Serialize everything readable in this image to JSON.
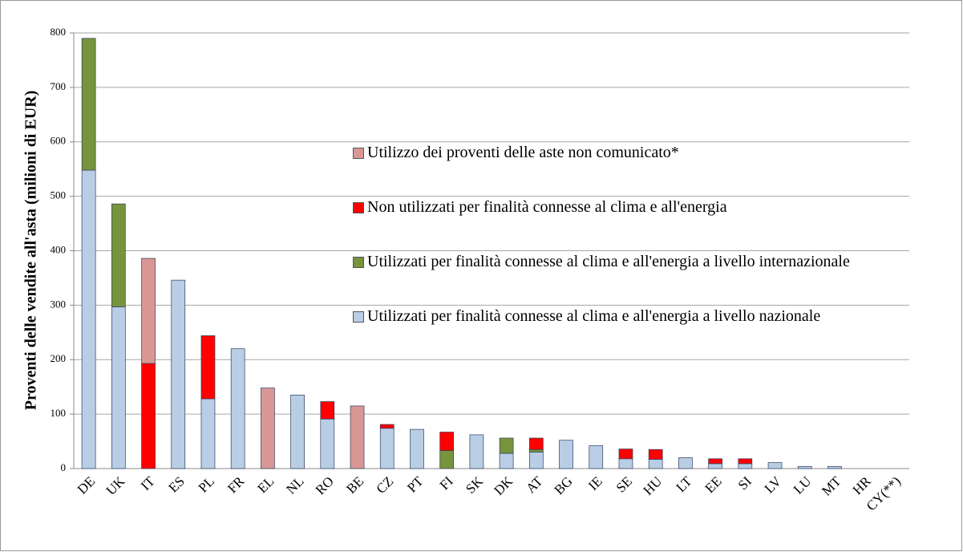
{
  "chart_data": {
    "type": "stacked_bar",
    "y_label": "Proventi delle vendite all'asta (milioni di EUR)",
    "categories": [
      "DE",
      "UK",
      "IT",
      "ES",
      "PL",
      "FR",
      "EL",
      "NL",
      "RO",
      "BE",
      "CZ",
      "PT",
      "FI",
      "SK",
      "DK",
      "AT",
      "BG",
      "IE",
      "SE",
      "HU",
      "LT",
      "EE",
      "SI",
      "LV",
      "LU",
      "MT",
      "HR",
      "CY(**)"
    ],
    "series": [
      {
        "name": "Utilizzati per finalità connesse al clima e all'energia a livello nazionale",
        "color": "#b9cde5",
        "values": [
          548,
          297,
          0,
          346,
          128,
          220,
          0,
          135,
          91,
          0,
          74,
          72,
          0,
          62,
          28,
          30,
          52,
          42,
          18,
          17,
          20,
          9,
          9,
          11,
          4,
          4,
          0,
          0
        ]
      },
      {
        "name": "Utilizzati per finalità connesse al clima e all'energia a livello internazionale",
        "color": "#77933c",
        "values": [
          242,
          189,
          0,
          0,
          0,
          0,
          0,
          0,
          0,
          0,
          0,
          0,
          33,
          0,
          28,
          5,
          0,
          0,
          0,
          0,
          0,
          0,
          0,
          0,
          0,
          0,
          0,
          0
        ]
      },
      {
        "name": "Non utilizzati per finalità connesse al clima e all'energia",
        "color": "#ff0000",
        "values": [
          0,
          0,
          193,
          0,
          116,
          0,
          0,
          0,
          32,
          0,
          7,
          0,
          34,
          0,
          0,
          21,
          0,
          0,
          18,
          18,
          0,
          9,
          9,
          0,
          0,
          0,
          0,
          0
        ]
      },
      {
        "name": "Utilizzo dei proventi delle aste non comunicato*",
        "color": "#d99694",
        "values": [
          0,
          0,
          193,
          0,
          0,
          0,
          148,
          0,
          0,
          115,
          0,
          0,
          0,
          0,
          0,
          0,
          0,
          0,
          0,
          0,
          0,
          0,
          0,
          0,
          0,
          0,
          0,
          0
        ]
      }
    ],
    "ylim": [
      0,
      800
    ],
    "yticks": [
      0,
      100,
      200,
      300,
      400,
      500,
      600,
      700,
      800
    ],
    "grid": true
  }
}
